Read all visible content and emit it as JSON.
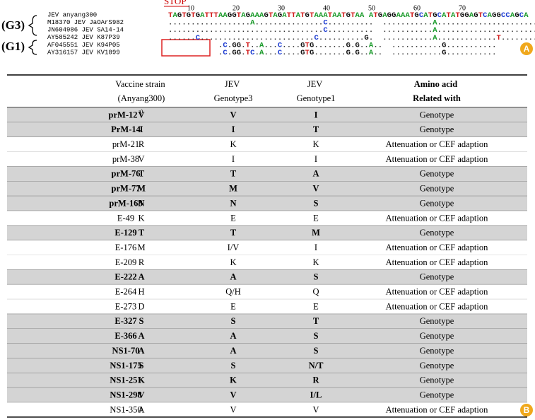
{
  "panel_a": {
    "label": "A",
    "stop": "STOP",
    "ruler": [
      10,
      20,
      30,
      40,
      50,
      60,
      70
    ],
    "groups": [
      "(G3)",
      "(G1)"
    ],
    "rows": [
      {
        "name": "JEV anyang300",
        "seq": "TAGTGTGATTTAAGGTAGAAAGTAGATTATGTAAATAATGTAA ATGAGGAAATGCATGCATATGGAGTCAGGCCAGCA"
      },
      {
        "name": "M18370 JEV JaOArS982",
        "seq": "..................A...............C..........  ...........A......................"
      },
      {
        "name": "JN604986 JEV SA14-14",
        "seq": "..................................C..........  ...........A......................"
      },
      {
        "name": "AY585242 JEV K87P39",
        "seq": "......C.........................C..........G.  ...........A.............T........"
      },
      {
        "name": "AF045551 JEV K94P05",
        "seq": "           .C.GG.T..A...C....GTG.......G.G..A..  ...........G..........."
      },
      {
        "name": "AY316157 JEV KV1899",
        "seq": "           .C.GG.TC.A...C....GTG.......G.G..A..  ...........G..........."
      }
    ]
  },
  "panel_b": {
    "label": "B",
    "table": {
      "header": [
        "",
        "Vaccine strain (Anyang300)",
        "JEV Genotype3",
        "JEV Genotype1",
        "Amino acid Related with"
      ],
      "rows": [
        {
          "cells": [
            "prM-12",
            "V",
            "V",
            "I",
            "Genotype"
          ],
          "sup": "a)",
          "highlight": true
        },
        {
          "cells": [
            "PrM-14",
            "I",
            "I",
            "T",
            "Genotype"
          ],
          "highlight": true
        },
        {
          "cells": [
            "prM-21",
            "R",
            "K",
            "K",
            "Attenuation or CEF adaption"
          ],
          "highlight": false
        },
        {
          "cells": [
            "prM-38",
            "V",
            "I",
            "I",
            "Attenuation or CEF adaption"
          ],
          "highlight": false
        },
        {
          "cells": [
            "prM-76",
            "T",
            "T",
            "A",
            "Genotype"
          ],
          "highlight": true
        },
        {
          "cells": [
            "prM-77",
            "M",
            "M",
            "V",
            "Genotype"
          ],
          "highlight": true
        },
        {
          "cells": [
            "prM-168",
            "N",
            "N",
            "S",
            "Genotype"
          ],
          "highlight": true
        },
        {
          "cells": [
            "E-49",
            "K",
            "E",
            "E",
            "Attenuation or CEF adaption"
          ],
          "highlight": false
        },
        {
          "cells": [
            "E-129",
            "T",
            "T",
            "M",
            "Genotype"
          ],
          "highlight": true
        },
        {
          "cells": [
            "E-176",
            "M",
            "I/V",
            "I",
            "Attenuation or CEF adaption"
          ],
          "highlight": false
        },
        {
          "cells": [
            "E-209",
            "R",
            "K",
            "K",
            "Attenuation or CEF adaption"
          ],
          "highlight": false
        },
        {
          "cells": [
            "E-222",
            "A",
            "A",
            "S",
            "Genotype"
          ],
          "highlight": true
        },
        {
          "cells": [
            "E-264",
            "H",
            "Q/H",
            "Q",
            "Attenuation or CEF adaption"
          ],
          "highlight": false
        },
        {
          "cells": [
            "E-273",
            "D",
            "E",
            "E",
            "Attenuation or CEF adaption"
          ],
          "highlight": false
        },
        {
          "cells": [
            "E-327",
            "S",
            "S",
            "T",
            "Genotype"
          ],
          "highlight": true
        },
        {
          "cells": [
            "E-366",
            "A",
            "A",
            "S",
            "Genotype"
          ],
          "highlight": true
        },
        {
          "cells": [
            "NS1-70",
            "A",
            "A",
            "S",
            "Genotype"
          ],
          "highlight": true
        },
        {
          "cells": [
            "NS1-175",
            "S",
            "S",
            "N/T",
            "Genotype"
          ],
          "highlight": true
        },
        {
          "cells": [
            "NS1-251",
            "K",
            "K",
            "R",
            "Genotype"
          ],
          "highlight": true
        },
        {
          "cells": [
            "NS1-298",
            "V",
            "V",
            "I/L",
            "Genotype"
          ],
          "highlight": true
        },
        {
          "cells": [
            "NS1-350",
            "A",
            "V",
            "V",
            "Attenuation or CEF adaption"
          ],
          "highlight": false
        }
      ]
    }
  }
}
